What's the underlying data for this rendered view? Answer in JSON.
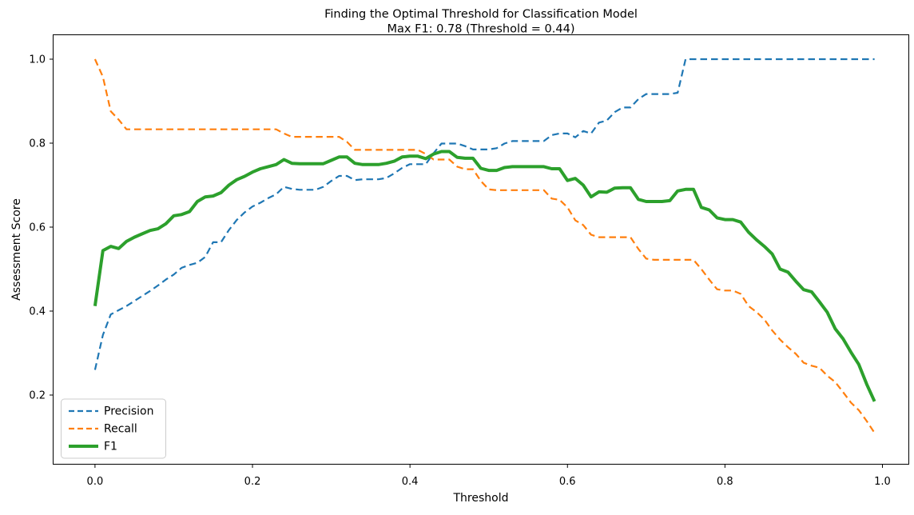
{
  "chart_data": {
    "type": "line",
    "title": "Finding the Optimal Threshold for Classification Model",
    "subtitle": "Max F1: 0.78 (Threshold = 0.44)",
    "xlabel": "Threshold",
    "ylabel": "Assessment Score",
    "x_tick_labels": [
      "0.0",
      "0.2",
      "0.4",
      "0.6",
      "0.8",
      "1.0"
    ],
    "x_tick_values": [
      0.0,
      0.2,
      0.4,
      0.6,
      0.8,
      1.0
    ],
    "y_tick_labels": [
      "0.2",
      "0.4",
      "0.6",
      "0.8",
      "1.0"
    ],
    "y_tick_values": [
      0.2,
      0.4,
      0.6,
      0.8,
      1.0
    ],
    "x_start": 0.0,
    "x_step": 0.01,
    "n_points": 100,
    "max_f1": 0.78,
    "max_f1_threshold": 0.44,
    "grid": false,
    "legend_position": "lower left",
    "series": [
      {
        "name": "Precision",
        "color": "#1f77b4",
        "style": "dashed",
        "line_width": 2.2,
        "values": [
          0.26,
          0.343,
          0.392,
          0.402,
          0.412,
          0.424,
          0.436,
          0.448,
          0.461,
          0.475,
          0.487,
          0.503,
          0.51,
          0.515,
          0.529,
          0.564,
          0.564,
          0.593,
          0.617,
          0.635,
          0.649,
          0.658,
          0.669,
          0.678,
          0.696,
          0.691,
          0.689,
          0.689,
          0.689,
          0.696,
          0.71,
          0.722,
          0.722,
          0.712,
          0.714,
          0.714,
          0.714,
          0.717,
          0.728,
          0.741,
          0.75,
          0.75,
          0.75,
          0.776,
          0.799,
          0.799,
          0.799,
          0.793,
          0.785,
          0.785,
          0.785,
          0.788,
          0.799,
          0.805,
          0.805,
          0.805,
          0.805,
          0.805,
          0.819,
          0.823,
          0.823,
          0.814,
          0.829,
          0.823,
          0.849,
          0.854,
          0.874,
          0.885,
          0.885,
          0.905,
          0.917,
          0.917,
          0.917,
          0.917,
          0.92,
          1.0,
          1.0,
          1.0,
          1.0,
          1.0,
          1.0,
          1.0,
          1.0,
          1.0,
          1.0,
          1.0,
          1.0,
          1.0,
          1.0,
          1.0,
          1.0,
          1.0,
          1.0,
          1.0,
          1.0,
          1.0,
          1.0,
          1.0,
          1.0,
          1.0
        ]
      },
      {
        "name": "Recall",
        "color": "#ff7f0e",
        "style": "dashed",
        "line_width": 2.2,
        "values": [
          1.0,
          0.958,
          0.876,
          0.856,
          0.833,
          0.833,
          0.833,
          0.833,
          0.833,
          0.833,
          0.833,
          0.833,
          0.833,
          0.833,
          0.833,
          0.833,
          0.833,
          0.833,
          0.833,
          0.833,
          0.833,
          0.833,
          0.833,
          0.833,
          0.823,
          0.815,
          0.815,
          0.815,
          0.815,
          0.815,
          0.815,
          0.815,
          0.803,
          0.784,
          0.784,
          0.784,
          0.784,
          0.784,
          0.784,
          0.784,
          0.784,
          0.784,
          0.774,
          0.761,
          0.761,
          0.761,
          0.744,
          0.738,
          0.738,
          0.71,
          0.69,
          0.688,
          0.688,
          0.688,
          0.688,
          0.688,
          0.688,
          0.688,
          0.668,
          0.665,
          0.647,
          0.616,
          0.605,
          0.582,
          0.576,
          0.576,
          0.576,
          0.576,
          0.576,
          0.548,
          0.525,
          0.522,
          0.522,
          0.522,
          0.522,
          0.522,
          0.522,
          0.5,
          0.475,
          0.452,
          0.449,
          0.449,
          0.441,
          0.412,
          0.398,
          0.38,
          0.354,
          0.332,
          0.314,
          0.298,
          0.277,
          0.27,
          0.265,
          0.246,
          0.231,
          0.207,
          0.182,
          0.164,
          0.138,
          0.11
        ]
      },
      {
        "name": "F1",
        "color": "#2ca02c",
        "style": "solid",
        "line_width": 4,
        "values": [
          0.412,
          0.544,
          0.554,
          0.549,
          0.566,
          0.576,
          0.584,
          0.592,
          0.596,
          0.608,
          0.627,
          0.63,
          0.637,
          0.661,
          0.672,
          0.674,
          0.682,
          0.7,
          0.713,
          0.721,
          0.731,
          0.739,
          0.744,
          0.749,
          0.761,
          0.752,
          0.751,
          0.751,
          0.751,
          0.751,
          0.759,
          0.767,
          0.767,
          0.752,
          0.749,
          0.749,
          0.749,
          0.752,
          0.757,
          0.767,
          0.769,
          0.769,
          0.763,
          0.774,
          0.78,
          0.78,
          0.766,
          0.764,
          0.764,
          0.74,
          0.735,
          0.735,
          0.742,
          0.744,
          0.744,
          0.744,
          0.744,
          0.744,
          0.739,
          0.739,
          0.711,
          0.716,
          0.7,
          0.672,
          0.684,
          0.683,
          0.693,
          0.694,
          0.694,
          0.666,
          0.661,
          0.661,
          0.661,
          0.663,
          0.686,
          0.69,
          0.69,
          0.647,
          0.641,
          0.622,
          0.618,
          0.618,
          0.612,
          0.588,
          0.57,
          0.554,
          0.536,
          0.5,
          0.493,
          0.471,
          0.451,
          0.446,
          0.422,
          0.397,
          0.358,
          0.334,
          0.302,
          0.273,
          0.226,
          0.185
        ]
      }
    ]
  }
}
